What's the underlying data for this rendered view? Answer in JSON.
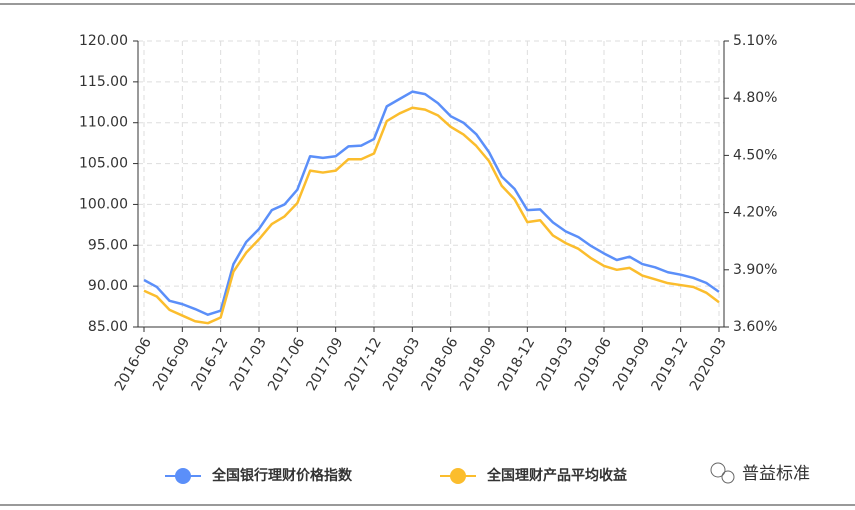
{
  "chart_data": {
    "type": "line",
    "categories": [
      "2016-06",
      null,
      null,
      "2016-09",
      null,
      null,
      "2016-12",
      null,
      null,
      "2017-03",
      null,
      null,
      "2017-06",
      null,
      null,
      "2017-09",
      null,
      null,
      "2017-12",
      null,
      null,
      "2018-03",
      null,
      null,
      "2018-06",
      null,
      null,
      "2018-09",
      null,
      null,
      "2018-12",
      null,
      null,
      "2019-03",
      null,
      null,
      "2019-06",
      null,
      null,
      "2019-09",
      null,
      null,
      "2019-12",
      null,
      null,
      "2020-03"
    ],
    "series": [
      {
        "name": "全国银行理财价格指数",
        "color": "#5b8ff9",
        "axis": "y",
        "values": [
          90.75,
          89.9,
          88.2,
          87.8,
          87.2,
          86.5,
          87.0,
          92.7,
          95.4,
          97.0,
          99.3,
          100.0,
          101.8,
          105.9,
          105.7,
          105.9,
          107.1,
          107.2,
          108.0,
          112.0,
          112.9,
          113.8,
          113.5,
          112.4,
          110.8,
          110.0,
          108.6,
          106.4,
          103.4,
          101.9,
          99.3,
          99.4,
          97.8,
          96.7,
          96.0,
          94.9,
          94.0,
          93.2,
          93.6,
          92.7,
          92.3,
          91.7,
          91.4,
          91.0,
          90.4,
          89.3
        ]
      },
      {
        "name": "全国理财产品平均收益",
        "color": "#fbbd2d",
        "axis": "y2",
        "values": [
          3.79,
          3.76,
          3.69,
          3.66,
          3.63,
          3.62,
          3.65,
          3.89,
          3.99,
          4.06,
          4.14,
          4.18,
          4.25,
          4.42,
          4.41,
          4.42,
          4.48,
          4.48,
          4.51,
          4.68,
          4.72,
          4.75,
          4.74,
          4.71,
          4.65,
          4.61,
          4.55,
          4.47,
          4.34,
          4.27,
          4.15,
          4.16,
          4.08,
          4.04,
          4.01,
          3.96,
          3.92,
          3.9,
          3.91,
          3.87,
          3.85,
          3.83,
          3.82,
          3.81,
          3.78,
          3.73
        ]
      }
    ],
    "ylim": [
      85,
      120
    ],
    "yticks": [
      {
        "value": 85,
        "label": "85.00"
      },
      {
        "value": 90,
        "label": "90.00"
      },
      {
        "value": 95,
        "label": "95.00"
      },
      {
        "value": 100,
        "label": "100.00"
      },
      {
        "value": 105,
        "label": "105.00"
      },
      {
        "value": 110,
        "label": "110.00"
      },
      {
        "value": 115,
        "label": "115.00"
      },
      {
        "value": 120,
        "label": "120.00"
      }
    ],
    "y2lim": [
      3.6,
      5.1
    ],
    "y2ticks": [
      {
        "value": 3.6,
        "label": "3.60%"
      },
      {
        "value": 3.9,
        "label": "3.90%"
      },
      {
        "value": 4.2,
        "label": "4.20%"
      },
      {
        "value": 4.5,
        "label": "4.50%"
      },
      {
        "value": 4.8,
        "label": "4.80%"
      },
      {
        "value": 5.1,
        "label": "5.10%"
      }
    ],
    "grid": true,
    "legend": "bottom",
    "watermark": "普益标准"
  }
}
